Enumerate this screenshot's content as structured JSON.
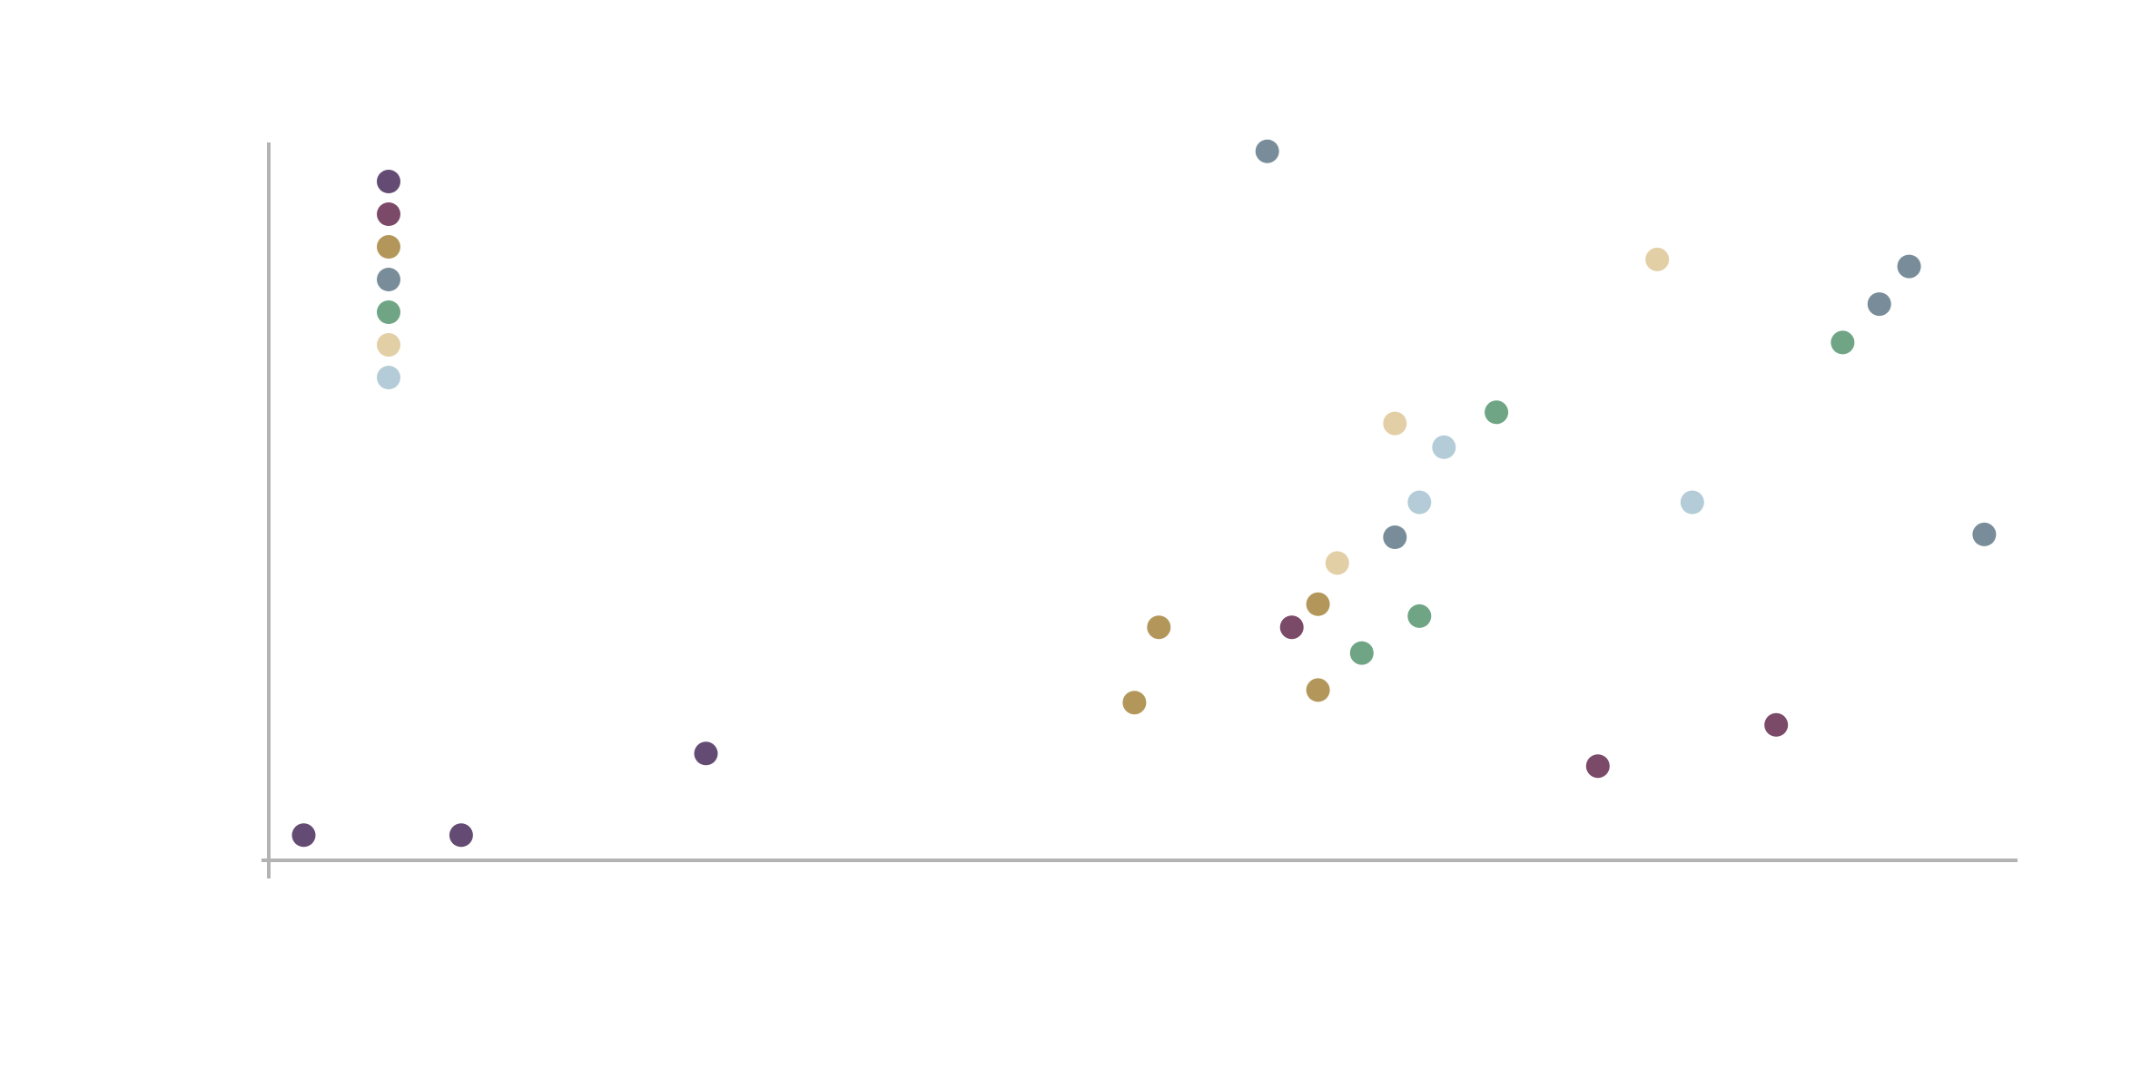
{
  "chart_data": {
    "type": "scatter",
    "title": "",
    "xlabel": "",
    "ylabel": "",
    "xlim": [
      0,
      100
    ],
    "ylim": [
      0,
      100
    ],
    "grid": false,
    "legend": {
      "placement": "top-left",
      "entries": [
        {
          "color": "#644b73"
        },
        {
          "color": "#7b4a68"
        },
        {
          "color": "#b3975a"
        },
        {
          "color": "#788d99"
        },
        {
          "color": "#6fa585"
        },
        {
          "color": "#e3cfa6"
        },
        {
          "color": "#b4ccd7"
        }
      ]
    },
    "series": [
      {
        "color": "#644b73",
        "points": [
          [
            2,
            3.6
          ],
          [
            11,
            3.6
          ],
          [
            25,
            15.3
          ]
        ]
      },
      {
        "color": "#7b4a68",
        "points": [
          [
            58.5,
            33.4
          ],
          [
            76,
            13.5
          ],
          [
            86.2,
            19.4
          ]
        ]
      },
      {
        "color": "#b3975a",
        "points": [
          [
            49.5,
            22.6
          ],
          [
            50.9,
            33.4
          ],
          [
            60,
            36.7
          ],
          [
            60,
            24.4
          ]
        ]
      },
      {
        "color": "#788d99",
        "points": [
          [
            57.1,
            101.6
          ],
          [
            64.4,
            46.3
          ],
          [
            92.1,
            79.7
          ],
          [
            93.8,
            85.1
          ],
          [
            98.1,
            46.7
          ]
        ]
      },
      {
        "color": "#6fa585",
        "points": [
          [
            62.5,
            29.7
          ],
          [
            65.8,
            35
          ],
          [
            70.2,
            64.2
          ],
          [
            90,
            74.2
          ]
        ]
      },
      {
        "color": "#e3cfa6",
        "points": [
          [
            61.1,
            42.6
          ],
          [
            64.4,
            62.6
          ],
          [
            79.4,
            86.1
          ]
        ]
      },
      {
        "color": "#b4ccd7",
        "points": [
          [
            65.8,
            51.3
          ],
          [
            67.2,
            59.2
          ],
          [
            81.4,
            51.3
          ]
        ]
      }
    ]
  }
}
